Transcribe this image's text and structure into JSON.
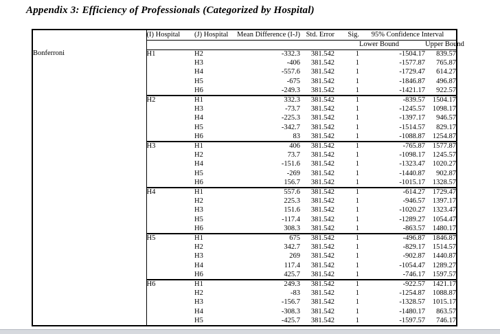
{
  "page": {
    "title": "Appendix 3: Efficiency of Professionals (Categorized by Hospital)"
  },
  "table": {
    "method_label": "Bonferroni",
    "headers": {
      "i_hospital": "(I) Hospital",
      "j_hospital": "(J) Hospital",
      "mean_difference": "Mean Difference (I-J)",
      "std_error": "Std. Error",
      "sig": "Sig.",
      "confidence_interval": "95% Confidence Interval",
      "lower_bound": "Lower Bound",
      "upper_bound": "Upper Bound"
    },
    "blocks": [
      {
        "i": "H1",
        "rows": [
          [
            "H2",
            "-332.3",
            "381.542",
            "1",
            "-1504.17",
            "839.57"
          ],
          [
            "H3",
            "-406",
            "381.542",
            "1",
            "-1577.87",
            "765.87"
          ],
          [
            "H4",
            "-557.6",
            "381.542",
            "1",
            "-1729.47",
            "614.27"
          ],
          [
            "H5",
            "-675",
            "381.542",
            "1",
            "-1846.87",
            "496.87"
          ],
          [
            "H6",
            "-249.3",
            "381.542",
            "1",
            "-1421.17",
            "922.57"
          ]
        ]
      },
      {
        "i": "H2",
        "rows": [
          [
            "H1",
            "332.3",
            "381.542",
            "1",
            "-839.57",
            "1504.17"
          ],
          [
            "H3",
            "-73.7",
            "381.542",
            "1",
            "-1245.57",
            "1098.17"
          ],
          [
            "H4",
            "-225.3",
            "381.542",
            "1",
            "-1397.17",
            "946.57"
          ],
          [
            "H5",
            "-342.7",
            "381.542",
            "1",
            "-1514.57",
            "829.17"
          ],
          [
            "H6",
            "83",
            "381.542",
            "1",
            "-1088.87",
            "1254.87"
          ]
        ]
      },
      {
        "i": "H3",
        "rows": [
          [
            "H1",
            "406",
            "381.542",
            "1",
            "-765.87",
            "1577.87"
          ],
          [
            "H2",
            "73.7",
            "381.542",
            "1",
            "-1098.17",
            "1245.57"
          ],
          [
            "H4",
            "-151.6",
            "381.542",
            "1",
            "-1323.47",
            "1020.27"
          ],
          [
            "H5",
            "-269",
            "381.542",
            "1",
            "-1440.87",
            "902.87"
          ],
          [
            "H6",
            "156.7",
            "381.542",
            "1",
            "-1015.17",
            "1328.57"
          ]
        ]
      },
      {
        "i": "H4",
        "rows": [
          [
            "H1",
            "557.6",
            "381.542",
            "1",
            "-614.27",
            "1729.47"
          ],
          [
            "H2",
            "225.3",
            "381.542",
            "1",
            "-946.57",
            "1397.17"
          ],
          [
            "H3",
            "151.6",
            "381.542",
            "1",
            "-1020.27",
            "1323.47"
          ],
          [
            "H5",
            "-117.4",
            "381.542",
            "1",
            "-1289.27",
            "1054.47"
          ],
          [
            "H6",
            "308.3",
            "381.542",
            "1",
            "-863.57",
            "1480.17"
          ]
        ]
      },
      {
        "i": "H5",
        "rows": [
          [
            "H1",
            "675",
            "381.542",
            "1",
            "-496.87",
            "1846.87"
          ],
          [
            "H2",
            "342.7",
            "381.542",
            "1",
            "-829.17",
            "1514.57"
          ],
          [
            "H3",
            "269",
            "381.542",
            "1",
            "-902.87",
            "1440.87"
          ],
          [
            "H4",
            "117.4",
            "381.542",
            "1",
            "-1054.47",
            "1289.27"
          ],
          [
            "H6",
            "425.7",
            "381.542",
            "1",
            "-746.17",
            "1597.57"
          ]
        ]
      },
      {
        "i": "H6",
        "rows": [
          [
            "H1",
            "249.3",
            "381.542",
            "1",
            "-922.57",
            "1421.17"
          ],
          [
            "H2",
            "-83",
            "381.542",
            "1",
            "-1254.87",
            "1088.87"
          ],
          [
            "H3",
            "-156.7",
            "381.542",
            "1",
            "-1328.57",
            "1015.17"
          ],
          [
            "H4",
            "-308.3",
            "381.542",
            "1",
            "-1480.17",
            "863.57"
          ],
          [
            "H5",
            "-425.7",
            "381.542",
            "1",
            "-1597.57",
            "746.17"
          ]
        ]
      }
    ]
  },
  "colors": {
    "text": "#000000",
    "table_border": "#000000",
    "page_background": "#ffffff",
    "bottom_bar": "#d6d9de"
  }
}
